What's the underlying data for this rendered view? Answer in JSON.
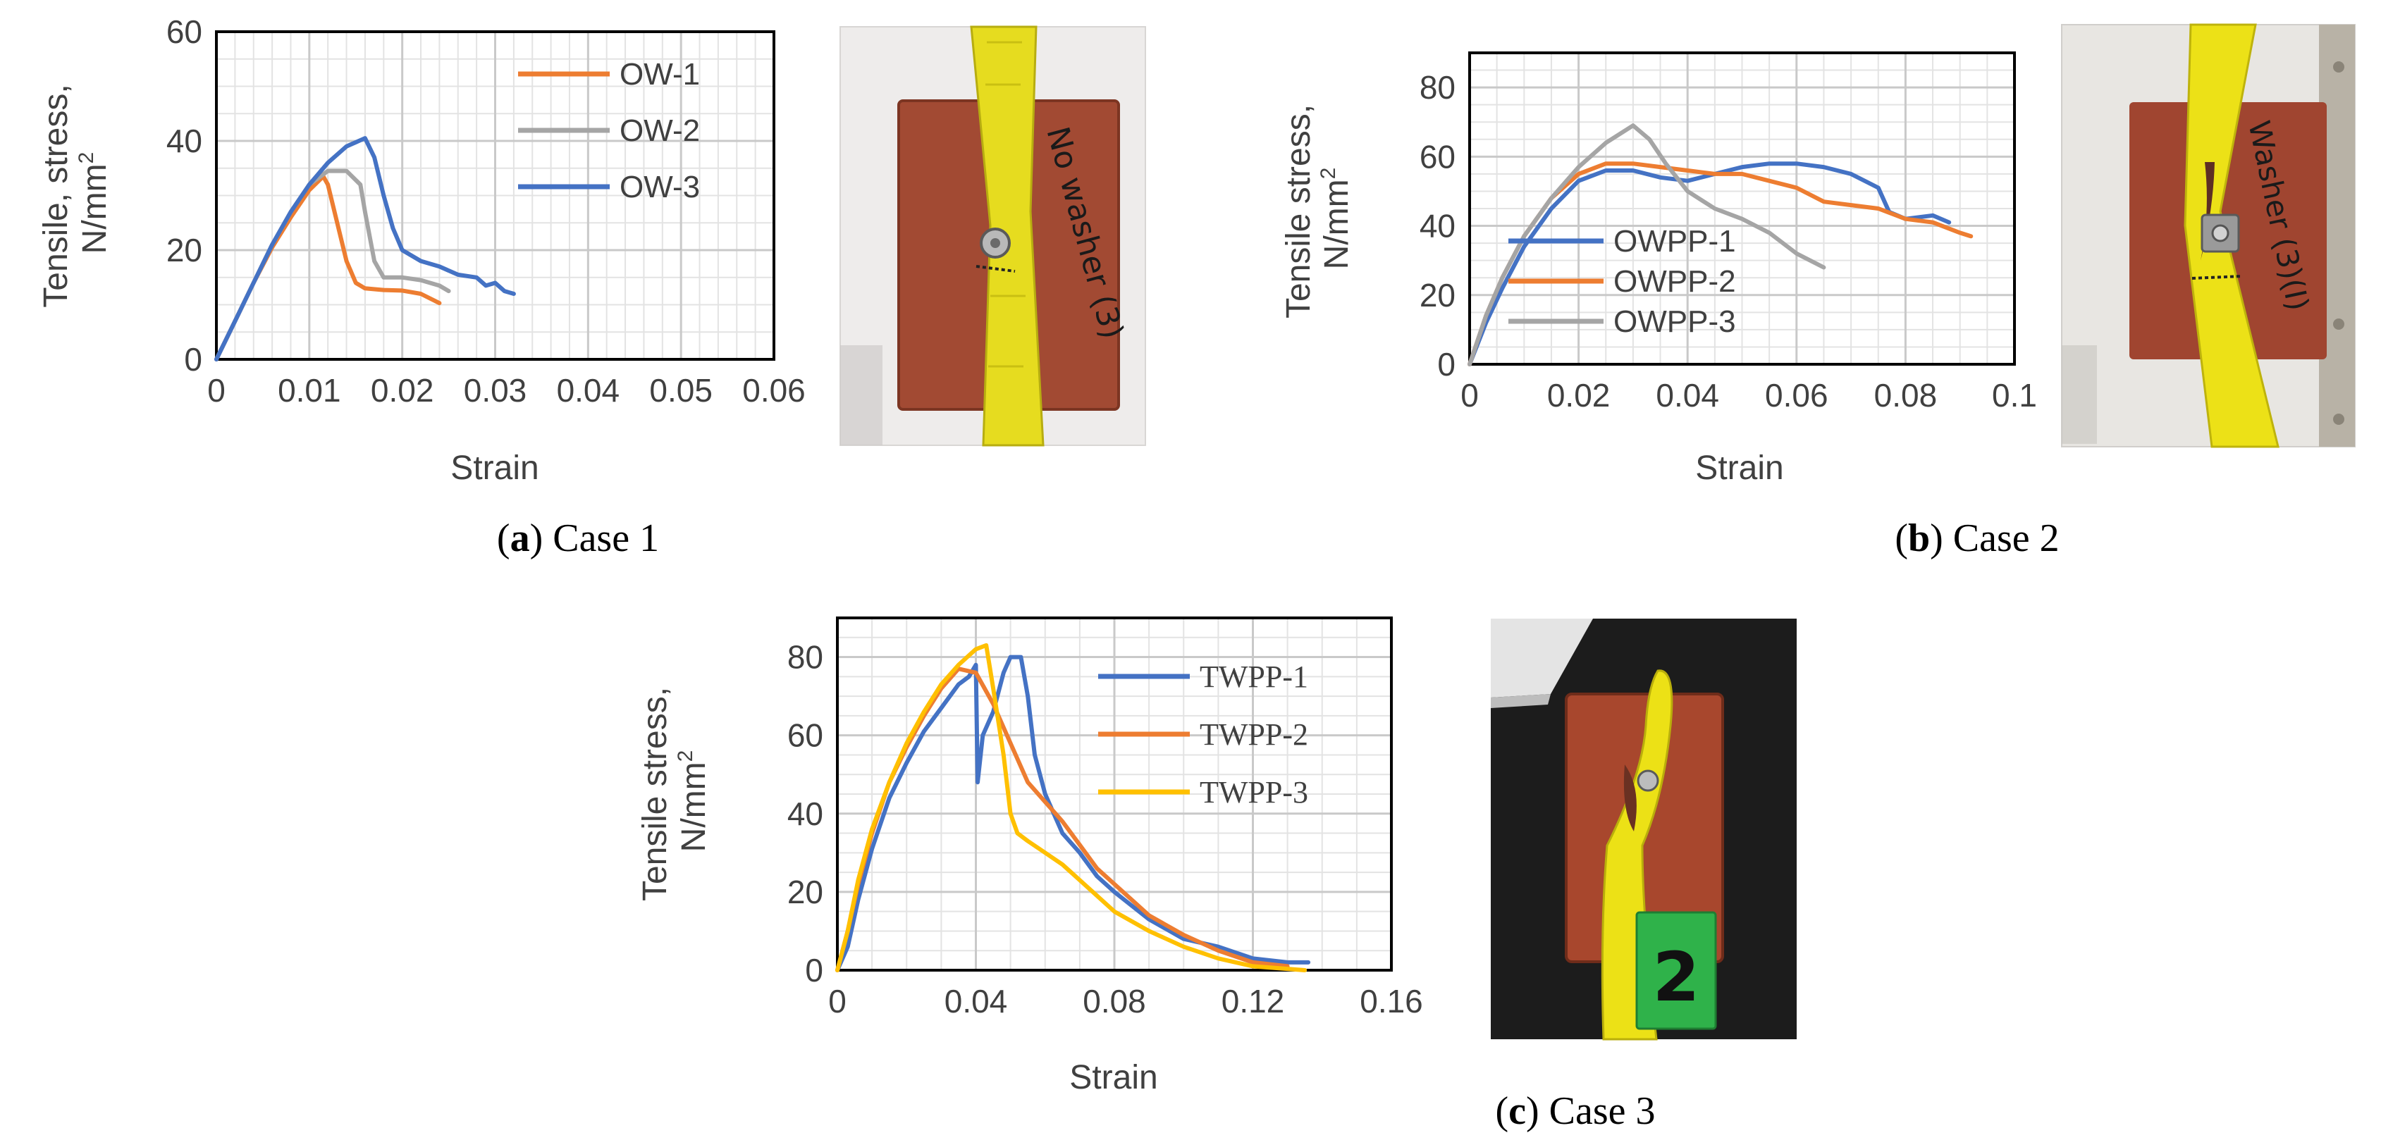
{
  "chart_data": [
    {
      "id": "a",
      "type": "line",
      "caption_letter": "a",
      "caption_text": "Case 1",
      "xlabel": "Strain",
      "ylabel_line1": "Tensile, stress,",
      "ylabel_line2": "N/mm",
      "ylabel_sup": "2",
      "xlim": [
        0,
        0.06
      ],
      "ylim": [
        0,
        60
      ],
      "x_ticks": [
        0,
        0.01,
        0.02,
        0.03,
        0.04,
        0.05,
        0.06
      ],
      "x_tick_labels": [
        "0",
        "0.01",
        "0.02",
        "0.03",
        "0.04",
        "0.05",
        "0.06"
      ],
      "y_ticks": [
        0,
        20,
        40,
        60
      ],
      "y_tick_labels": [
        "0",
        "20",
        "40",
        "60"
      ],
      "grid": true,
      "legend_position": "top-right",
      "series": [
        {
          "name": "OW-1",
          "color": "#ED7D31",
          "x": [
            0,
            0.002,
            0.004,
            0.006,
            0.008,
            0.01,
            0.0115,
            0.012,
            0.013,
            0.014,
            0.015,
            0.016,
            0.018,
            0.02,
            0.022,
            0.024
          ],
          "y": [
            0,
            7,
            14,
            20.5,
            26,
            31,
            33.5,
            32,
            25,
            18,
            14,
            13,
            12.7,
            12.6,
            12,
            10.3
          ]
        },
        {
          "name": "OW-2",
          "color": "#A5A5A5",
          "x": [
            0,
            0.002,
            0.004,
            0.006,
            0.008,
            0.01,
            0.012,
            0.014,
            0.0155,
            0.016,
            0.017,
            0.018,
            0.02,
            0.022,
            0.024,
            0.025
          ],
          "y": [
            0,
            7,
            14,
            21,
            27,
            32,
            34.5,
            34.5,
            32,
            27,
            18,
            15,
            15,
            14.5,
            13.5,
            12.5
          ]
        },
        {
          "name": "OW-3",
          "color": "#4472C4",
          "x": [
            0,
            0.002,
            0.004,
            0.006,
            0.008,
            0.01,
            0.012,
            0.014,
            0.016,
            0.017,
            0.018,
            0.019,
            0.02,
            0.022,
            0.024,
            0.026,
            0.028,
            0.029,
            0.03,
            0.031,
            0.032
          ],
          "y": [
            0,
            7,
            14,
            21,
            27,
            32,
            36,
            39,
            40.5,
            37,
            30,
            24,
            20,
            18,
            17,
            15.5,
            15,
            13.5,
            14,
            12.5,
            12
          ]
        }
      ]
    },
    {
      "id": "b",
      "type": "line",
      "caption_letter": "b",
      "caption_text": "Case 2",
      "xlabel": "Strain",
      "ylabel_line1": "Tensile stress,",
      "ylabel_line2": "N/mm",
      "ylabel_sup": "2",
      "xlim": [
        0,
        0.1
      ],
      "ylim": [
        0,
        90
      ],
      "x_ticks": [
        0,
        0.02,
        0.04,
        0.06,
        0.08,
        0.1
      ],
      "x_tick_labels": [
        "0",
        "0.02",
        "0.04",
        "0.06",
        "0.08",
        "0.1"
      ],
      "y_ticks": [
        0,
        20,
        40,
        60,
        80
      ],
      "y_tick_labels": [
        "0",
        "20",
        "40",
        "60",
        "80"
      ],
      "grid": true,
      "legend_position": "bottom-left",
      "series": [
        {
          "name": "OWPP-1",
          "color": "#4472C4",
          "x": [
            0,
            0.003,
            0.006,
            0.01,
            0.015,
            0.02,
            0.025,
            0.03,
            0.035,
            0.04,
            0.045,
            0.05,
            0.055,
            0.06,
            0.065,
            0.07,
            0.075,
            0.077,
            0.08,
            0.085,
            0.088
          ],
          "y": [
            0,
            12,
            22,
            34,
            45,
            53,
            56,
            56,
            54,
            53,
            55,
            57,
            58,
            58,
            57,
            55,
            51,
            44,
            42,
            43,
            41
          ]
        },
        {
          "name": "OWPP-2",
          "color": "#ED7D31",
          "x": [
            0,
            0.003,
            0.006,
            0.01,
            0.015,
            0.02,
            0.025,
            0.03,
            0.035,
            0.04,
            0.045,
            0.05,
            0.055,
            0.06,
            0.065,
            0.07,
            0.075,
            0.08,
            0.085,
            0.09,
            0.092
          ],
          "y": [
            0,
            14,
            25,
            37,
            48,
            55,
            58,
            58,
            57,
            56,
            55,
            55,
            53,
            51,
            47,
            46,
            45,
            42,
            41,
            38,
            37
          ]
        },
        {
          "name": "OWPP-3",
          "color": "#A5A5A5",
          "x": [
            0,
            0.003,
            0.006,
            0.01,
            0.015,
            0.02,
            0.025,
            0.03,
            0.033,
            0.036,
            0.04,
            0.045,
            0.05,
            0.055,
            0.06,
            0.065
          ],
          "y": [
            0,
            14,
            25,
            37,
            48,
            57,
            64,
            69,
            65,
            58,
            50,
            45,
            42,
            38,
            32,
            28
          ]
        }
      ]
    },
    {
      "id": "c",
      "type": "line",
      "caption_letter": "c",
      "caption_text": "Case 3",
      "xlabel": "Strain",
      "ylabel_line1": "Tensile stress,",
      "ylabel_line2": "N/mm",
      "ylabel_sup": "2",
      "xlim": [
        0,
        0.16
      ],
      "ylim": [
        0,
        90
      ],
      "x_ticks": [
        0,
        0.04,
        0.08,
        0.12,
        0.16
      ],
      "x_tick_labels": [
        "0",
        "0.04",
        "0.08",
        "0.12",
        "0.16"
      ],
      "y_ticks": [
        0,
        20,
        40,
        60,
        80
      ],
      "y_tick_labels": [
        "0",
        "20",
        "40",
        "60",
        "80"
      ],
      "grid": true,
      "legend_position": "top-right",
      "series": [
        {
          "name": "TWPP-1",
          "color": "#4472C4",
          "x": [
            0,
            0.003,
            0.006,
            0.01,
            0.015,
            0.02,
            0.025,
            0.03,
            0.035,
            0.038,
            0.04,
            0.0405,
            0.042,
            0.045,
            0.048,
            0.05,
            0.053,
            0.055,
            0.057,
            0.06,
            0.065,
            0.07,
            0.075,
            0.08,
            0.09,
            0.1,
            0.11,
            0.12,
            0.13,
            0.136
          ],
          "y": [
            0,
            6,
            18,
            31,
            44,
            53,
            61,
            67,
            73,
            75,
            78,
            48,
            60,
            66,
            76,
            80,
            80,
            70,
            55,
            45,
            35,
            30,
            24,
            20,
            13,
            8,
            6,
            3,
            2,
            2
          ]
        },
        {
          "name": "TWPP-2",
          "color": "#ED7D31",
          "x": [
            0,
            0.003,
            0.006,
            0.01,
            0.015,
            0.02,
            0.025,
            0.03,
            0.035,
            0.04,
            0.045,
            0.05,
            0.055,
            0.06,
            0.065,
            0.07,
            0.075,
            0.08,
            0.09,
            0.1,
            0.11,
            0.12,
            0.13
          ],
          "y": [
            0,
            10,
            22,
            35,
            48,
            57,
            65,
            72,
            77,
            76,
            68,
            58,
            48,
            43,
            38,
            32,
            26,
            22,
            14,
            9,
            5,
            2,
            1
          ]
        },
        {
          "name": "TWPP-3",
          "color": "#FFC000",
          "x": [
            0,
            0.003,
            0.006,
            0.01,
            0.015,
            0.02,
            0.025,
            0.03,
            0.035,
            0.04,
            0.043,
            0.045,
            0.048,
            0.05,
            0.052,
            0.055,
            0.06,
            0.065,
            0.07,
            0.075,
            0.08,
            0.09,
            0.1,
            0.11,
            0.12,
            0.135
          ],
          "y": [
            0,
            10,
            23,
            36,
            48,
            58,
            66,
            73,
            78,
            82,
            83,
            72,
            55,
            40,
            35,
            33,
            30,
            27,
            23,
            19,
            15,
            10,
            6,
            3,
            1,
            0
          ]
        }
      ]
    }
  ],
  "photos": [
    {
      "id": "a",
      "annotation": "No washer (3)"
    },
    {
      "id": "b",
      "annotation": "Washer (3)(I)"
    },
    {
      "id": "c",
      "annotation": "2"
    }
  ]
}
